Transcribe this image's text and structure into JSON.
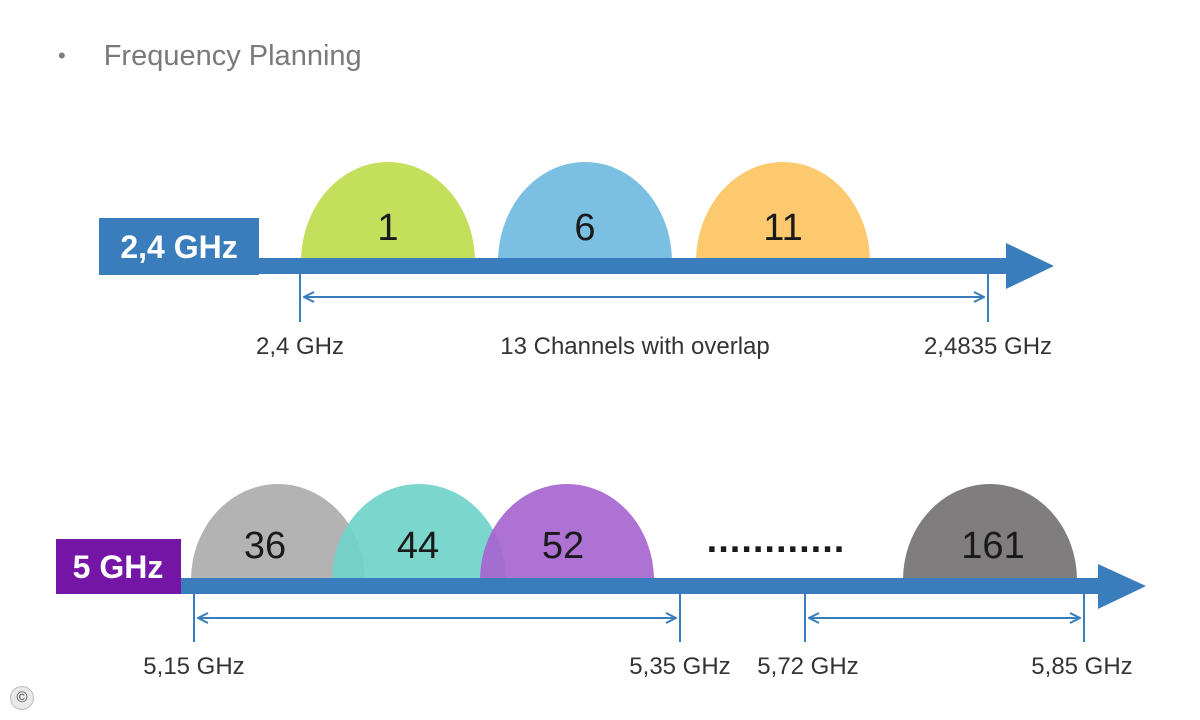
{
  "heading": {
    "bullet": "•",
    "text": "Frequency Planning"
  },
  "colors": {
    "axis_blue": "#3a7dbd",
    "label_24": "#3a7dbd",
    "label_5": "#7415a6",
    "dimension_line": "#3a7dbd",
    "text_dark": "#1a1a1a",
    "text_gray": "#333333"
  },
  "band_24": {
    "label": "2,4 GHz",
    "channels": [
      {
        "number": "1",
        "color": "#c4df5b"
      },
      {
        "number": "6",
        "color": "#7bbfe2"
      },
      {
        "number": "11",
        "color": "#fcc96e"
      }
    ],
    "range_start": "2,4 GHz",
    "range_note": "13 Channels with overlap",
    "range_end": "2,4835 GHz"
  },
  "band_5": {
    "label": "5 GHz",
    "channels": [
      {
        "number": "36",
        "color": "#b3b3b3"
      },
      {
        "number": "44",
        "color": "#70d3c9"
      },
      {
        "number": "52",
        "color": "#a765d0"
      },
      {
        "number": "161",
        "color": "#7f7d7e"
      }
    ],
    "ellipsis": "............",
    "markers": [
      "5,15 GHz",
      "5,35 GHz",
      "5,72 GHz",
      "5,85 GHz"
    ]
  },
  "copyright": {
    "symbol": "©"
  }
}
